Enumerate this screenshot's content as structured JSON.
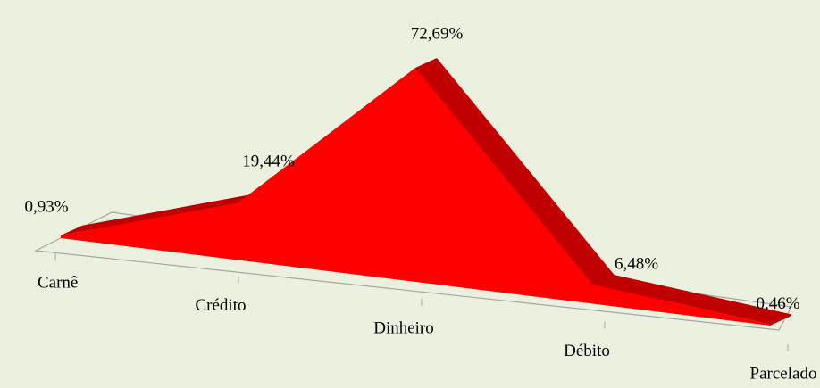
{
  "chart_data": {
    "type": "area3d",
    "categories": [
      "Carnê",
      "Crédito",
      "Dinheiro",
      "Débito",
      "Parcelado"
    ],
    "values": [
      0.93,
      19.44,
      72.69,
      6.48,
      0.46
    ],
    "value_labels": [
      "0,93%",
      "19,44%",
      "72,69%",
      "6,48%",
      "0,46%"
    ],
    "color": "#ff0000",
    "side_color": "#c00000"
  }
}
